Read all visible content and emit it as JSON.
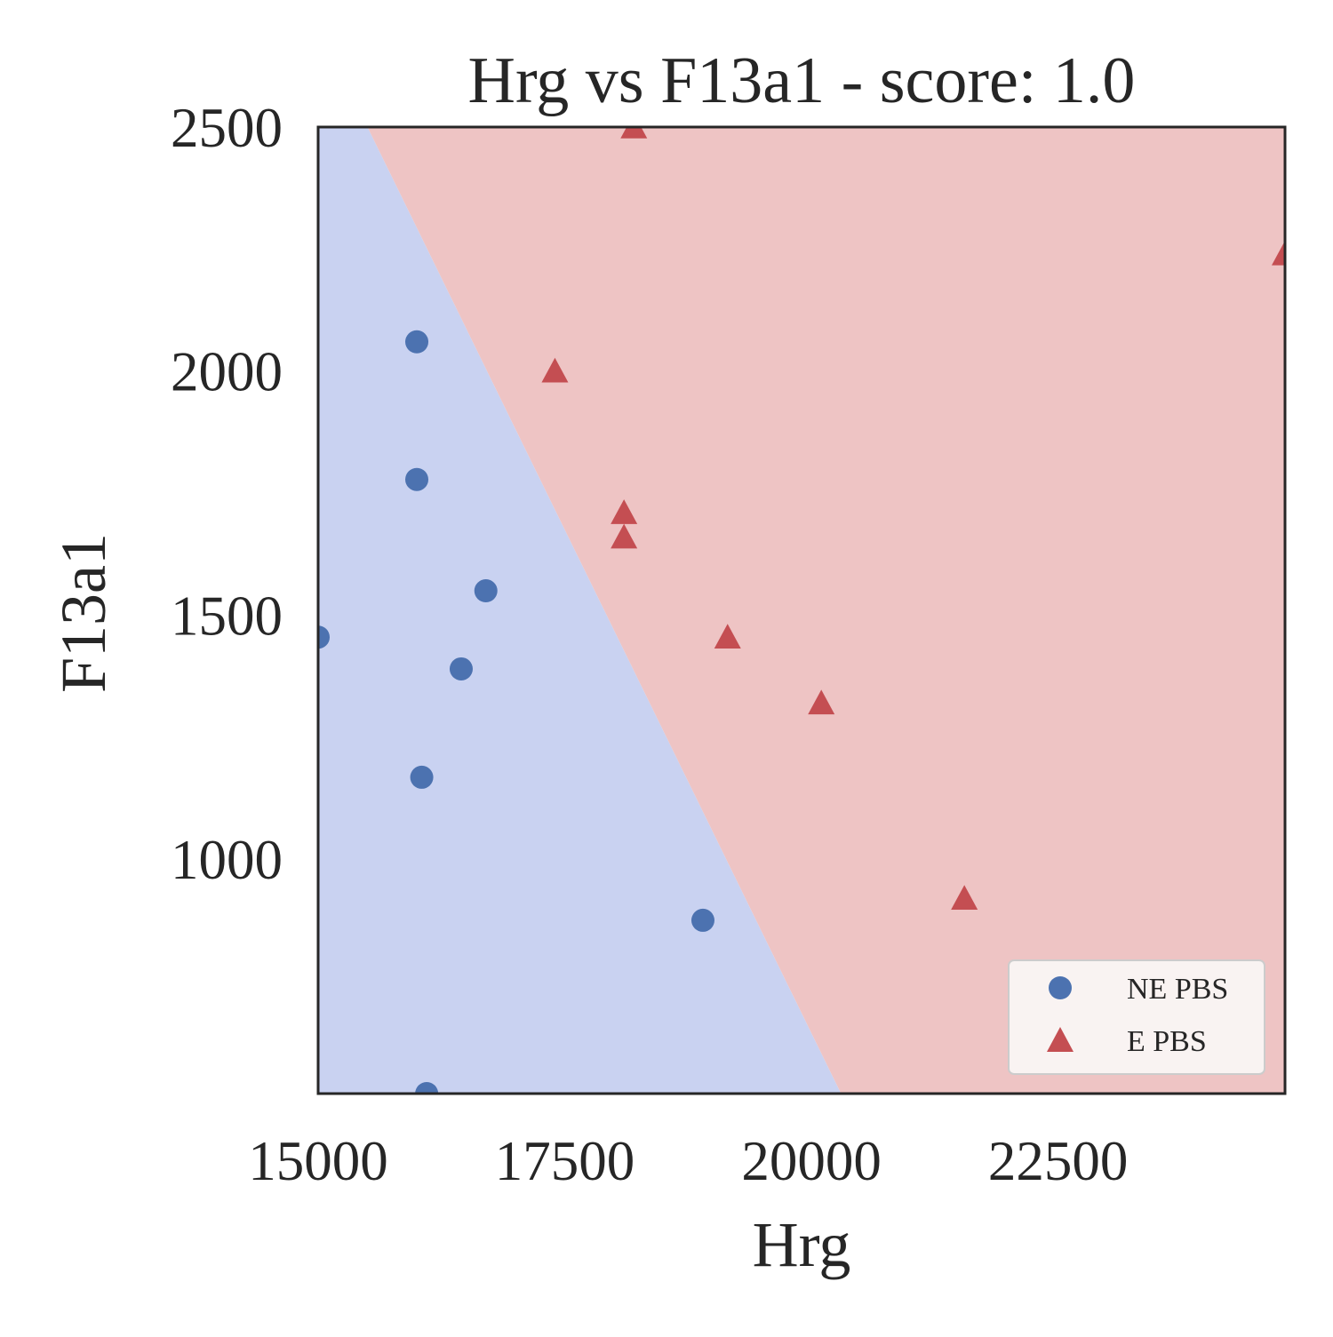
{
  "chart_data": {
    "type": "scatter",
    "title": "Hrg vs F13a1 - score: 1.0",
    "xlabel": "Hrg",
    "ylabel": "F13a1",
    "xlim": [
      15000,
      24800
    ],
    "ylim": [
      520,
      2500
    ],
    "xticks": [
      15000,
      17500,
      20000,
      22500
    ],
    "yticks": [
      1000,
      1500,
      2000,
      2500
    ],
    "decision_boundary": {
      "points": [
        [
          15500,
          2500
        ],
        [
          20300,
          520
        ]
      ],
      "regions": [
        {
          "class": "NE PBS",
          "side": "left",
          "color": "#c9d2f1"
        },
        {
          "class": "E PBS",
          "side": "right",
          "color": "#eec4c4"
        }
      ]
    },
    "series": [
      {
        "name": "NE PBS",
        "marker": "circle",
        "color": "#4c72b0",
        "points": [
          [
            15000,
            1455
          ],
          [
            16000,
            2060
          ],
          [
            16000,
            1778
          ],
          [
            16700,
            1550
          ],
          [
            16450,
            1390
          ],
          [
            16050,
            1168
          ],
          [
            18900,
            875
          ],
          [
            16100,
            520
          ]
        ]
      },
      {
        "name": "E PBS",
        "marker": "triangle",
        "color": "#c44e52",
        "points": [
          [
            18200,
            2500
          ],
          [
            17400,
            2000
          ],
          [
            18100,
            1710
          ],
          [
            18100,
            1660
          ],
          [
            19150,
            1455
          ],
          [
            20100,
            1320
          ],
          [
            21550,
            920
          ],
          [
            24800,
            2240
          ]
        ]
      }
    ],
    "legend": {
      "position": "lower-right"
    },
    "grid": false
  }
}
